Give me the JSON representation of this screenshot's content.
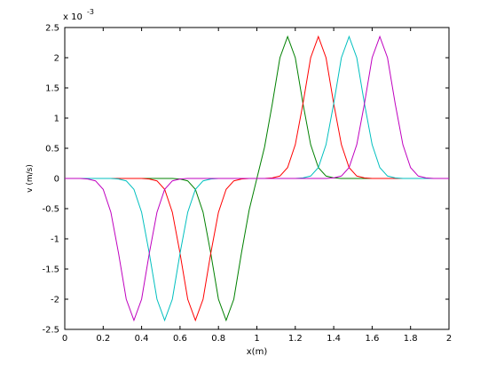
{
  "chart_data": {
    "type": "line",
    "x_label": "x(m)",
    "y_label": "v (m/s)",
    "y_scale": "x 10",
    "y_scale_exponent": "-3",
    "x": [
      0,
      0.04,
      0.08,
      0.12,
      0.16,
      0.2,
      0.24,
      0.28,
      0.32,
      0.36,
      0.4,
      0.44,
      0.48,
      0.52,
      0.56,
      0.6,
      0.64,
      0.68,
      0.72,
      0.76,
      0.8,
      0.84,
      0.88,
      0.92,
      0.96,
      1,
      1.04,
      1.08,
      1.12,
      1.16,
      1.2,
      1.24,
      1.28,
      1.32,
      1.36,
      1.4,
      1.44,
      1.48,
      1.52,
      1.56,
      1.6,
      1.64,
      1.68,
      1.72,
      1.76,
      1.8,
      1.84,
      1.88,
      1.92,
      1.96,
      2
    ],
    "series": [
      {
        "color": "#008000",
        "values": [
          0,
          0,
          0,
          0,
          0,
          0,
          0,
          0,
          0,
          0,
          0,
          0,
          0,
          0,
          0,
          -0.01,
          -0.04,
          -0.18,
          -0.56,
          -1.24,
          -2.0,
          -2.35,
          -2.0,
          -1.23,
          -0.52,
          0,
          0.52,
          1.23,
          2.0,
          2.35,
          2.0,
          1.24,
          0.56,
          0.18,
          0.04,
          0.01,
          0,
          0,
          0,
          0,
          0,
          0,
          0,
          0,
          0,
          0,
          0,
          0,
          0,
          0,
          0
        ]
      },
      {
        "color": "#ff0000",
        "values": [
          0,
          0,
          0,
          0,
          0,
          0,
          0,
          0,
          0,
          0,
          0,
          -0.01,
          -0.04,
          -0.18,
          -0.56,
          -1.24,
          -2.0,
          -2.35,
          -2.0,
          -1.24,
          -0.56,
          -0.18,
          -0.04,
          -0.01,
          0,
          0,
          0,
          0.01,
          0.04,
          0.18,
          0.56,
          1.24,
          2.0,
          2.35,
          2.0,
          1.24,
          0.56,
          0.18,
          0.04,
          0.01,
          0,
          0,
          0,
          0,
          0,
          0,
          0,
          0,
          0,
          0,
          0
        ]
      },
      {
        "color": "#00bfbf",
        "values": [
          0,
          0,
          0,
          0,
          0,
          0,
          0,
          -0.01,
          -0.04,
          -0.18,
          -0.56,
          -1.24,
          -2.0,
          -2.35,
          -2.0,
          -1.24,
          -0.56,
          -0.18,
          -0.04,
          -0.01,
          0,
          0,
          0,
          0,
          0,
          0,
          0,
          0,
          0,
          0,
          0,
          0.01,
          0.04,
          0.18,
          0.56,
          1.24,
          2.0,
          2.35,
          2.0,
          1.24,
          0.56,
          0.18,
          0.04,
          0.01,
          0,
          0,
          0,
          0,
          0,
          0,
          0
        ]
      },
      {
        "color": "#bf00bf",
        "values": [
          0,
          0,
          0,
          -0.01,
          -0.04,
          -0.18,
          -0.56,
          -1.24,
          -2.0,
          -2.35,
          -2.0,
          -1.24,
          -0.56,
          -0.18,
          -0.04,
          -0.01,
          0,
          0,
          0,
          0,
          0,
          0,
          0,
          0,
          0,
          0,
          0,
          0,
          0,
          0,
          0,
          0,
          0,
          0,
          0,
          0.01,
          0.04,
          0.18,
          0.56,
          1.24,
          2.0,
          2.35,
          2.0,
          1.24,
          0.56,
          0.18,
          0.04,
          0.01,
          0,
          0,
          0
        ]
      }
    ],
    "xlim": [
      0,
      2
    ],
    "xticks": [
      0,
      0.2,
      0.4,
      0.6,
      0.8,
      1,
      1.2,
      1.4,
      1.6,
      1.8,
      2
    ],
    "ylim": [
      -2.5,
      2.5
    ],
    "yticks": [
      -2.5,
      -2,
      -1.5,
      -1,
      -0.5,
      0,
      0.5,
      1,
      1.5,
      2,
      2.5
    ],
    "grid": false
  }
}
